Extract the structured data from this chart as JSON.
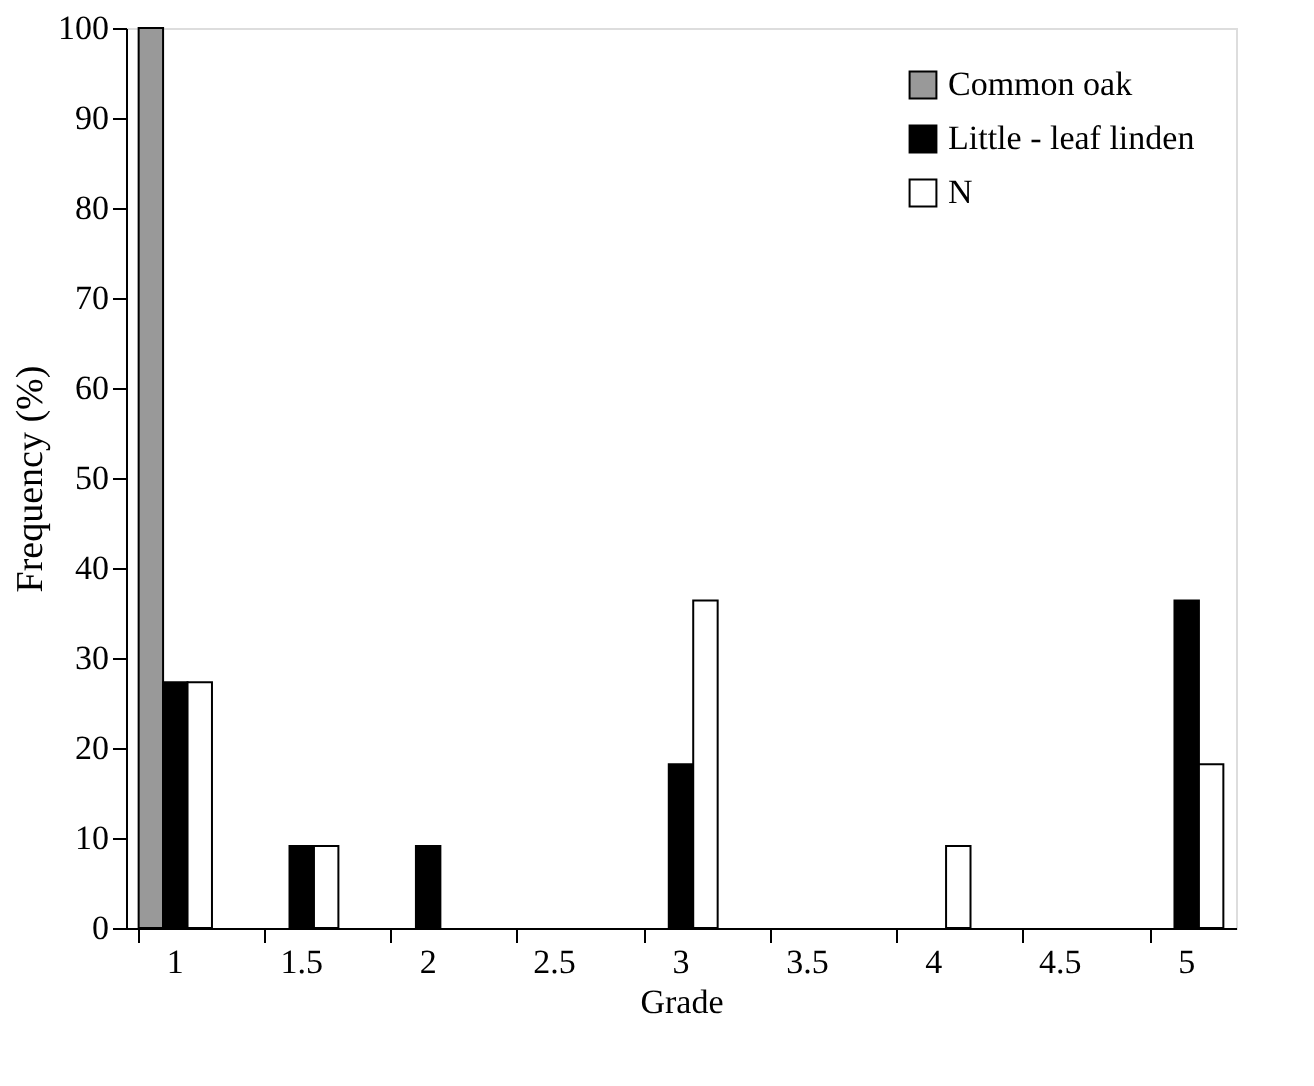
{
  "chart_data": {
    "type": "bar",
    "xlabel": "Grade",
    "ylabel": "Frequency (%)",
    "categories": [
      "1",
      "1.5",
      "2",
      "2.5",
      "3",
      "3.5",
      "4",
      "4.5",
      "5"
    ],
    "series": [
      {
        "name": "Common oak",
        "color": "#999999",
        "values": [
          100,
          0,
          0,
          0,
          0,
          0,
          0,
          0,
          0
        ]
      },
      {
        "name": "Little - leaf linden",
        "color": "#000000",
        "values": [
          27.3,
          9.1,
          9.1,
          0,
          18.2,
          0,
          0,
          0,
          36.4
        ]
      },
      {
        "name": "N",
        "color": "#ffffff",
        "values": [
          27.3,
          9.1,
          0,
          0,
          36.4,
          0,
          9.1,
          0,
          18.2
        ]
      }
    ],
    "ylim": [
      0,
      100
    ],
    "yticks": [
      0,
      10,
      20,
      30,
      40,
      50,
      60,
      70,
      80,
      90,
      100
    ],
    "grid": false,
    "legend": "top right"
  }
}
